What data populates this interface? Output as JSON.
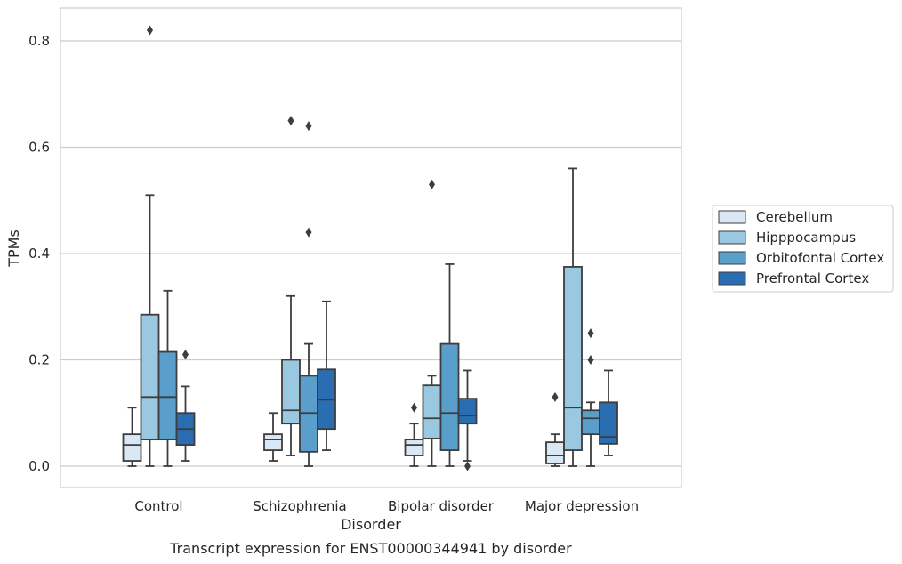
{
  "chart_data": {
    "type": "box",
    "caption": "Transcript expression for ENST00000344941 by disorder",
    "xlabel": "Disorder",
    "ylabel": "TPMs",
    "ylim": [
      -0.04,
      0.86
    ],
    "yticks": [
      0.0,
      0.2,
      0.4,
      0.6,
      0.8
    ],
    "ytick_labels": [
      "0.0",
      "0.2",
      "0.4",
      "0.6",
      "0.8"
    ],
    "grid": true,
    "legend_position": "right",
    "categories": [
      "Control",
      "Schizophrenia",
      "Bipolar disorder",
      "Major depression"
    ],
    "series": [
      {
        "name": "Cerebellum",
        "color": "#dae8f5",
        "boxes": [
          {
            "whislo": 0.0,
            "q1": 0.01,
            "med": 0.04,
            "q3": 0.06,
            "whishi": 0.11,
            "fliers": []
          },
          {
            "whislo": 0.01,
            "q1": 0.03,
            "med": 0.05,
            "q3": 0.06,
            "whishi": 0.1,
            "fliers": []
          },
          {
            "whislo": 0.0,
            "q1": 0.02,
            "med": 0.04,
            "q3": 0.05,
            "whishi": 0.08,
            "fliers": [
              0.11
            ]
          },
          {
            "whislo": 0.0,
            "q1": 0.005,
            "med": 0.02,
            "q3": 0.045,
            "whishi": 0.06,
            "fliers": [
              0.13
            ]
          }
        ]
      },
      {
        "name": "Hipppocampus",
        "color": "#9ac8e0",
        "boxes": [
          {
            "whislo": 0.0,
            "q1": 0.05,
            "med": 0.13,
            "q3": 0.285,
            "whishi": 0.51,
            "fliers": [
              0.82
            ]
          },
          {
            "whislo": 0.02,
            "q1": 0.08,
            "med": 0.105,
            "q3": 0.2,
            "whishi": 0.32,
            "fliers": [
              0.65
            ]
          },
          {
            "whislo": 0.0,
            "q1": 0.052,
            "med": 0.09,
            "q3": 0.152,
            "whishi": 0.17,
            "fliers": [
              0.53
            ]
          },
          {
            "whislo": 0.0,
            "q1": 0.03,
            "med": 0.11,
            "q3": 0.375,
            "whishi": 0.56,
            "fliers": []
          }
        ]
      },
      {
        "name": "Orbitofontal Cortex",
        "color": "#5a9ecc",
        "boxes": [
          {
            "whislo": 0.0,
            "q1": 0.05,
            "med": 0.13,
            "q3": 0.215,
            "whishi": 0.33,
            "fliers": []
          },
          {
            "whislo": 0.0,
            "q1": 0.027,
            "med": 0.1,
            "q3": 0.17,
            "whishi": 0.23,
            "fliers": [
              0.64,
              0.44
            ]
          },
          {
            "whislo": 0.0,
            "q1": 0.03,
            "med": 0.1,
            "q3": 0.23,
            "whishi": 0.38,
            "fliers": []
          },
          {
            "whislo": 0.0,
            "q1": 0.06,
            "med": 0.09,
            "q3": 0.105,
            "whishi": 0.12,
            "fliers": [
              0.25,
              0.2
            ]
          }
        ]
      },
      {
        "name": "Prefrontal Cortex",
        "color": "#2a6db0",
        "boxes": [
          {
            "whislo": 0.01,
            "q1": 0.04,
            "med": 0.07,
            "q3": 0.1,
            "whishi": 0.15,
            "fliers": [
              0.21
            ]
          },
          {
            "whislo": 0.03,
            "q1": 0.07,
            "med": 0.125,
            "q3": 0.182,
            "whishi": 0.31,
            "fliers": []
          },
          {
            "whislo": 0.01,
            "q1": 0.08,
            "med": 0.095,
            "q3": 0.127,
            "whishi": 0.18,
            "fliers": [
              0.0
            ]
          },
          {
            "whislo": 0.02,
            "q1": 0.042,
            "med": 0.055,
            "q3": 0.12,
            "whishi": 0.18,
            "fliers": []
          }
        ]
      }
    ]
  }
}
